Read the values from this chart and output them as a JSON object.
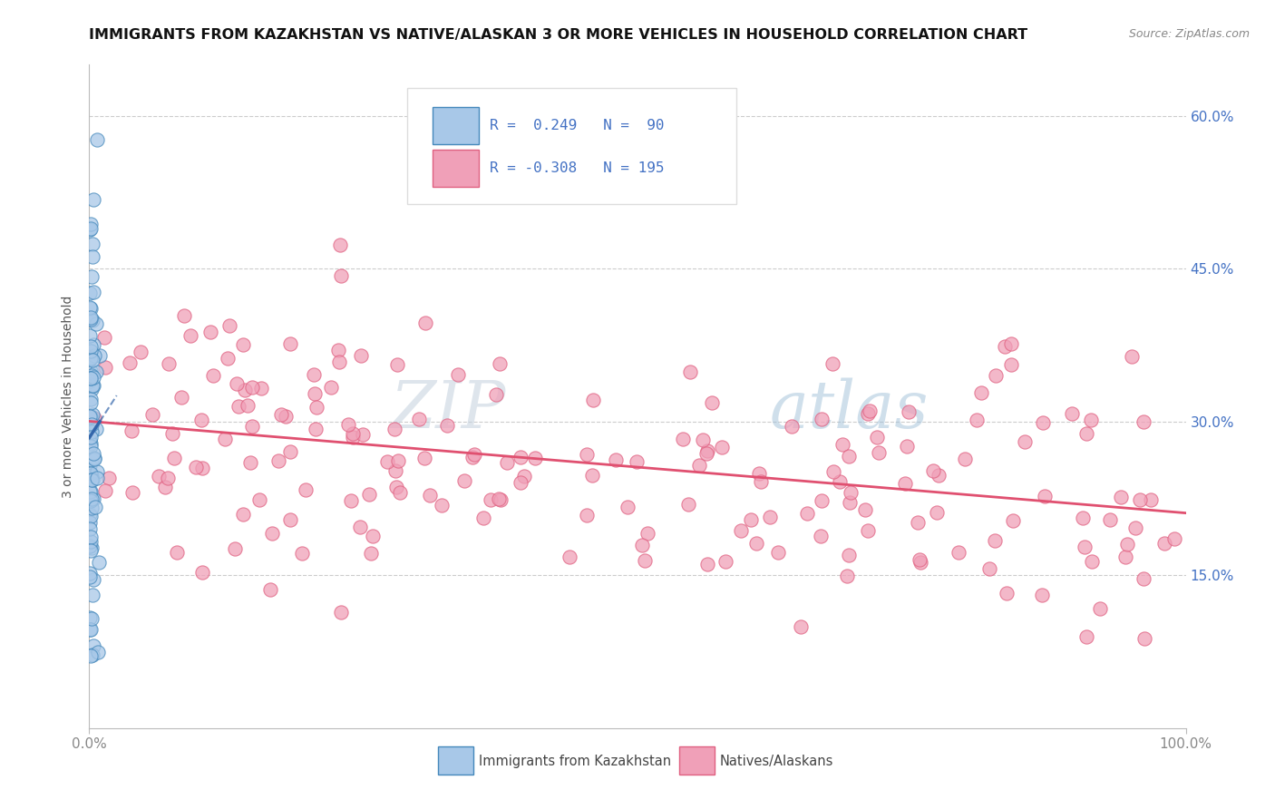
{
  "title": "IMMIGRANTS FROM KAZAKHSTAN VS NATIVE/ALASKAN 3 OR MORE VEHICLES IN HOUSEHOLD CORRELATION CHART",
  "source": "Source: ZipAtlas.com",
  "ylabel": "3 or more Vehicles in Household",
  "xlim": [
    0.0,
    1.0
  ],
  "ylim": [
    0.0,
    0.65
  ],
  "xtick_labels": [
    "0.0%",
    "100.0%"
  ],
  "ytick_labels": [
    "15.0%",
    "30.0%",
    "45.0%",
    "60.0%"
  ],
  "ytick_vals": [
    0.15,
    0.3,
    0.45,
    0.6
  ],
  "blue_R": 0.249,
  "blue_N": 90,
  "pink_R": -0.308,
  "pink_N": 195,
  "blue_face_color": "#a8c8e8",
  "blue_edge_color": "#4488bb",
  "pink_face_color": "#f0a0b8",
  "pink_edge_color": "#e06080",
  "blue_line_color": "#3366aa",
  "pink_line_color": "#e05070",
  "legend_label_blue": "Immigrants from Kazakhstan",
  "legend_label_pink": "Natives/Alaskans",
  "title_color": "#111111",
  "source_color": "#888888",
  "tick_color": "#888888",
  "grid_color": "#cccccc",
  "ylabel_color": "#555555",
  "right_tick_color": "#4472c4",
  "legend_text_color": "#4472c4"
}
